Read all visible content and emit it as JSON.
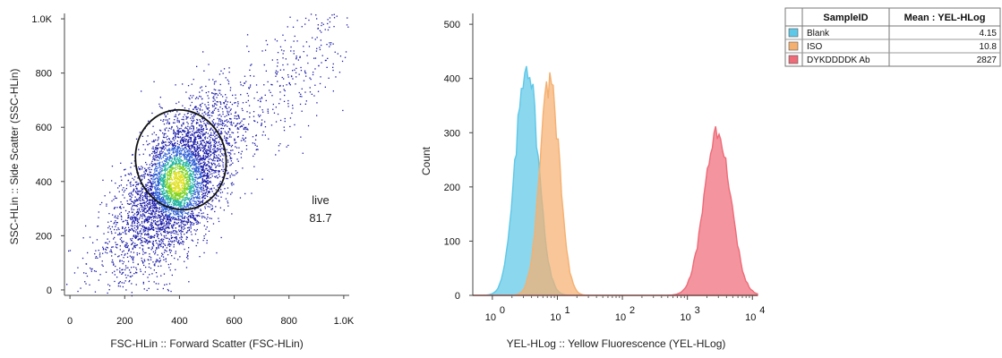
{
  "chart_data": [
    {
      "type": "scatter",
      "title": "",
      "xlabel": "FSC-HLin :: Forward Scatter (FSC-HLin)",
      "ylabel": "SSC-HLin :: Side Scatter (SSC-HLin)",
      "xlim": [
        -20,
        1020
      ],
      "ylim": [
        -20,
        1020
      ],
      "x_ticks": [
        0,
        200,
        400,
        600,
        800,
        1000
      ],
      "x_tick_labels": [
        "0",
        "200",
        "400",
        "600",
        "800",
        "1.0K"
      ],
      "y_ticks": [
        0,
        200,
        400,
        600,
        800,
        1000
      ],
      "y_tick_labels": [
        "0",
        "200",
        "400",
        "600",
        "800",
        "1.0K"
      ],
      "density": {
        "center": [
          390,
          400
        ],
        "spread": [
          95,
          140
        ],
        "correlation": 0.55,
        "colors": [
          "#1a1aa8",
          "#2e5fd6",
          "#21b5a0",
          "#7ed321",
          "#e0e020"
        ]
      },
      "gate": {
        "name": "live",
        "value": "81.7",
        "shape": "ellipse",
        "center": [
          405,
          480
        ],
        "radii": [
          165,
          370
        ],
        "rotation_deg": -12
      }
    },
    {
      "type": "area",
      "title": "",
      "xlabel": "YEL-HLog :: Yellow Fluorescence (YEL-HLog)",
      "ylabel": "Count",
      "x_scale": "log",
      "xlim": [
        0.5,
        12000
      ],
      "ylim": [
        0,
        520
      ],
      "x_ticks": [
        1,
        10,
        100,
        1000,
        10000
      ],
      "x_tick_base": "10",
      "x_tick_exponents": [
        "0",
        "1",
        "2",
        "3",
        "4"
      ],
      "y_ticks": [
        0,
        100,
        200,
        300,
        400,
        500
      ],
      "y_tick_labels": [
        "0",
        "100",
        "200",
        "300",
        "400",
        "500"
      ],
      "series": [
        {
          "name": "Blank",
          "peak_x": 3.4,
          "peak_count": 430,
          "log_width": 0.17,
          "color": "#5ec8e8"
        },
        {
          "name": "ISO",
          "peak_x": 7.6,
          "peak_count": 395,
          "log_width": 0.15,
          "color": "#f5b070"
        },
        {
          "name": "DYKDDDDK Ab",
          "peak_x": 2900,
          "peak_count": 310,
          "log_width": 0.2,
          "color": "#ee6b78"
        }
      ]
    }
  ],
  "legend_table": {
    "headers": [
      "SampleID",
      "Mean : YEL-HLog"
    ],
    "rows": [
      {
        "sample": "Blank",
        "mean": "4.15",
        "color": "#5ec8e8"
      },
      {
        "sample": "ISO",
        "mean": "10.8",
        "color": "#f5b070"
      },
      {
        "sample": "DYKDDDDK Ab",
        "mean": "2827",
        "color": "#ee6b78"
      }
    ]
  }
}
